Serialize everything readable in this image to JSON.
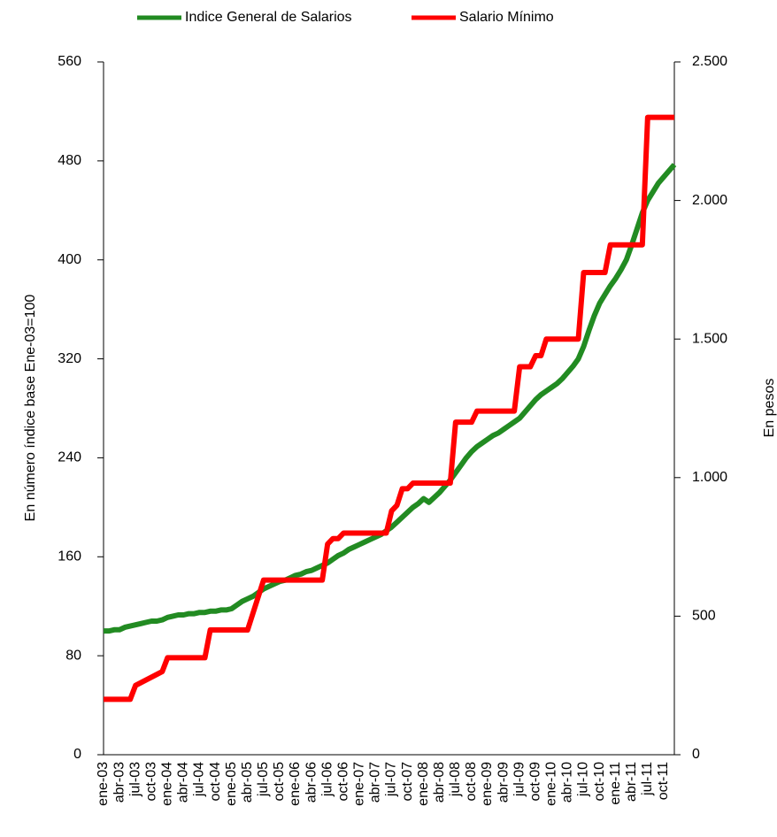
{
  "chart_data": {
    "type": "line",
    "categories": [
      "ene-03",
      null,
      null,
      "abr-03",
      null,
      null,
      "jul-03",
      null,
      null,
      "oct-03",
      null,
      null,
      "ene-04",
      null,
      null,
      "abr-04",
      null,
      null,
      "jul-04",
      null,
      null,
      "oct-04",
      null,
      null,
      "ene-05",
      null,
      null,
      "abr-05",
      null,
      null,
      "jul-05",
      null,
      null,
      "oct-05",
      null,
      null,
      "ene-06",
      null,
      null,
      "abr-06",
      null,
      null,
      "jul-06",
      null,
      null,
      "oct-06",
      null,
      null,
      "ene-07",
      null,
      null,
      "abr-07",
      null,
      null,
      "jul-07",
      null,
      null,
      "oct-07",
      null,
      null,
      "ene-08",
      null,
      null,
      "abr-08",
      null,
      null,
      "jul-08",
      null,
      null,
      "oct-08",
      null,
      null,
      "ene-09",
      null,
      null,
      "abr-09",
      null,
      null,
      "jul-09",
      null,
      null,
      "oct-09",
      null,
      null,
      "ene-10",
      null,
      null,
      "abr-10",
      null,
      null,
      "jul-10",
      null,
      null,
      "oct-10",
      null,
      null,
      "ene-11",
      null,
      null,
      "abr-11",
      null,
      null,
      "jul-11",
      null,
      null,
      "oct-11",
      null,
      null
    ],
    "series": [
      {
        "name": "Indice General de Salarios",
        "color": "#228b22",
        "values": [
          100,
          100,
          101,
          101,
          103,
          104,
          105,
          106,
          107,
          108,
          108,
          109,
          111,
          112,
          113,
          113,
          114,
          114,
          115,
          115,
          116,
          116,
          117,
          117,
          118,
          121,
          124,
          126,
          128,
          131,
          134,
          136,
          138,
          140,
          141,
          143,
          145,
          146,
          148,
          149,
          151,
          153,
          155,
          158,
          161,
          163,
          166,
          168,
          170,
          172,
          174,
          176,
          178,
          181,
          184,
          188,
          192,
          196,
          200,
          203,
          207,
          204,
          208,
          212,
          217,
          222,
          228,
          234,
          240,
          245,
          249,
          252,
          255,
          258,
          260,
          263,
          266,
          269,
          272,
          277,
          282,
          287,
          291,
          294,
          297,
          300,
          304,
          309,
          314,
          320,
          330,
          343,
          355,
          365,
          372,
          379,
          385,
          392,
          400,
          412,
          425,
          438,
          448,
          455,
          462,
          467,
          472,
          477
        ]
      },
      {
        "name": "Salario Mínimo",
        "color": "#ff0000",
        "axis": "y2",
        "values": [
          200,
          200,
          200,
          200,
          200,
          200,
          250,
          260,
          270,
          280,
          290,
          300,
          350,
          350,
          350,
          350,
          350,
          350,
          350,
          350,
          450,
          450,
          450,
          450,
          450,
          450,
          450,
          450,
          510,
          570,
          630,
          630,
          630,
          630,
          630,
          630,
          630,
          630,
          630,
          630,
          630,
          630,
          760,
          780,
          780,
          800,
          800,
          800,
          800,
          800,
          800,
          800,
          800,
          800,
          880,
          900,
          960,
          960,
          980,
          980,
          980,
          980,
          980,
          980,
          980,
          980,
          1200,
          1200,
          1200,
          1200,
          1240,
          1240,
          1240,
          1240,
          1240,
          1240,
          1240,
          1240,
          1400,
          1400,
          1400,
          1440,
          1440,
          1500,
          1500,
          1500,
          1500,
          1500,
          1500,
          1500,
          1740,
          1740,
          1740,
          1740,
          1740,
          1840,
          1840,
          1840,
          1840,
          1840,
          1840,
          1840,
          2300,
          2300,
          2300,
          2300,
          2300,
          2300
        ]
      }
    ],
    "y_label": "En número índice base Ene-03=100",
    "y2_label": "En pesos",
    "ylim": [
      0,
      560
    ],
    "yticks": [
      0,
      80,
      160,
      240,
      320,
      400,
      480,
      560
    ],
    "y2lim": [
      0,
      2500
    ],
    "y2ticks": [
      0,
      500,
      {
        "value": 1000,
        "label": "1.000"
      },
      {
        "value": 1500,
        "label": "1.500"
      },
      {
        "value": 2000,
        "label": "2.000"
      },
      {
        "value": 2500,
        "label": "2.500"
      }
    ],
    "legend": "top"
  }
}
